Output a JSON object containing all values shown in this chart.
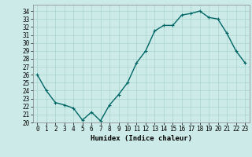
{
  "x": [
    0,
    1,
    2,
    3,
    4,
    5,
    6,
    7,
    8,
    9,
    10,
    11,
    12,
    13,
    14,
    15,
    16,
    17,
    18,
    19,
    20,
    21,
    22,
    23
  ],
  "y": [
    26.0,
    24.0,
    22.5,
    22.2,
    21.8,
    20.3,
    21.3,
    20.2,
    22.2,
    23.5,
    25.0,
    27.5,
    29.0,
    31.5,
    32.2,
    32.2,
    33.5,
    33.7,
    34.0,
    33.2,
    33.0,
    31.2,
    29.0,
    27.5
  ],
  "line_color": "#006666",
  "marker": "+",
  "marker_size": 3,
  "bg_color": "#cceae7",
  "grid_color": "#aad4d0",
  "xlabel": "Humidex (Indice chaleur)",
  "xlim": [
    -0.5,
    23.5
  ],
  "ylim": [
    20,
    34.8
  ],
  "yticks": [
    20,
    21,
    22,
    23,
    24,
    25,
    26,
    27,
    28,
    29,
    30,
    31,
    32,
    33,
    34
  ],
  "xticks": [
    0,
    1,
    2,
    3,
    4,
    5,
    6,
    7,
    8,
    9,
    10,
    11,
    12,
    13,
    14,
    15,
    16,
    17,
    18,
    19,
    20,
    21,
    22,
    23
  ],
  "xlabel_fontsize": 6.5,
  "tick_fontsize": 5.5,
  "line_width": 1.0
}
